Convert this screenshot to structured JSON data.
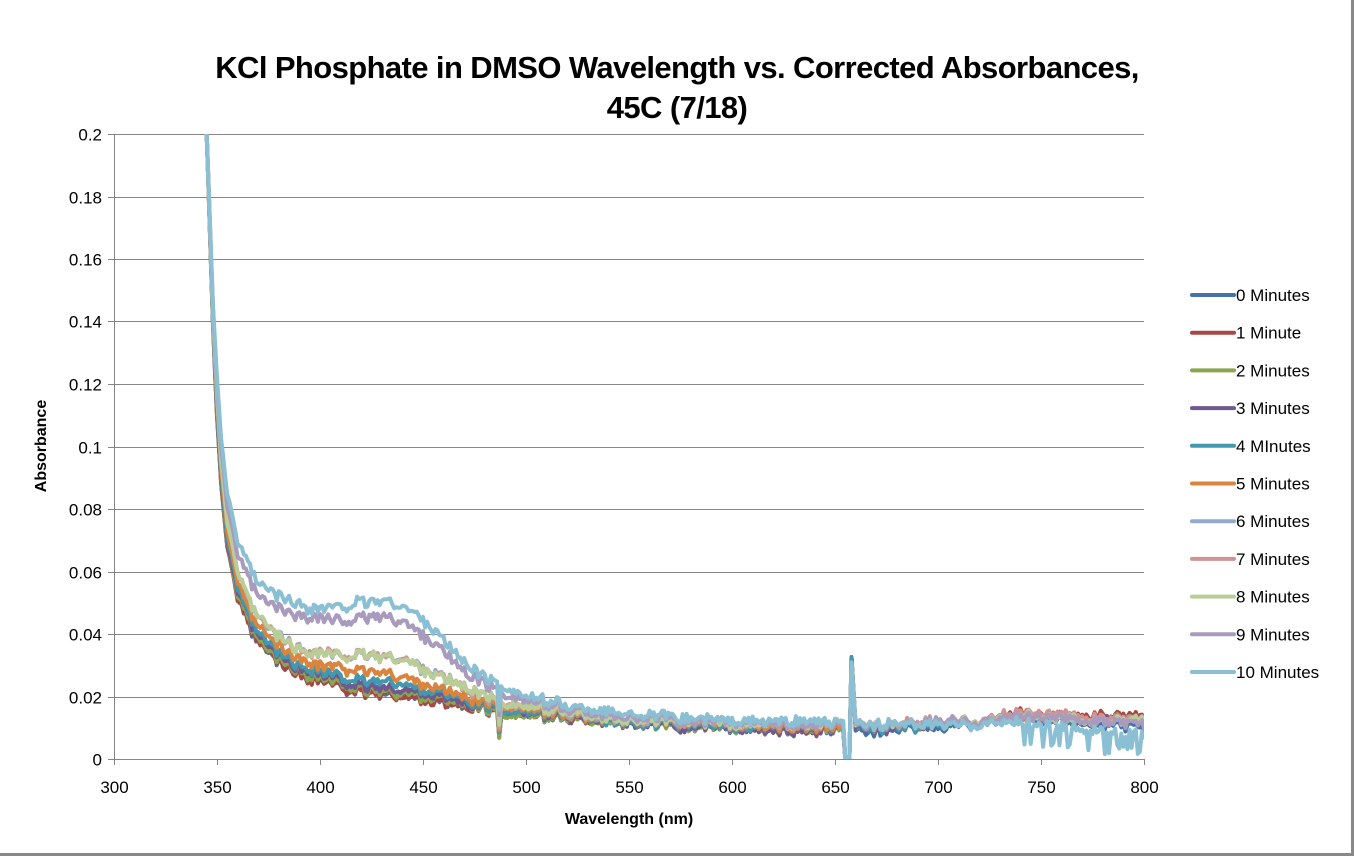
{
  "chart_data": {
    "type": "line",
    "title": "KCl Phosphate in DMSO Wavelength vs. Corrected Absorbances,",
    "title_line2": "45C (7/18)",
    "xlabel": "Wavelength (nm)",
    "ylabel": "Absorbance",
    "xlim": [
      300,
      800
    ],
    "ylim": [
      0,
      0.2
    ],
    "xticks": [
      300,
      350,
      400,
      450,
      500,
      550,
      600,
      650,
      700,
      750,
      800
    ],
    "yticks": [
      0,
      0.02,
      0.04,
      0.06,
      0.08,
      0.1,
      0.12,
      0.14,
      0.16,
      0.18,
      0.2
    ],
    "ytick_labels": [
      "0",
      "0.02",
      "0.04",
      "0.06",
      "0.08",
      "0.1",
      "0.12",
      "0.14",
      "0.16",
      "0.18",
      "0.2"
    ],
    "grid": "horizontal",
    "legend_position": "right",
    "x": [
      345,
      348,
      350,
      352,
      355,
      360,
      365,
      370,
      380,
      390,
      400,
      410,
      420,
      430,
      440,
      450,
      460,
      470,
      480,
      490,
      500,
      520,
      540,
      560,
      580,
      600,
      620,
      640,
      655,
      658,
      660,
      680,
      700,
      720,
      740,
      760,
      780,
      800
    ],
    "series": [
      {
        "name": "0 Minutes",
        "color": "#4572A7",
        "values": [
          0.2,
          0.14,
          0.11,
          0.088,
          0.068,
          0.052,
          0.043,
          0.037,
          0.031,
          0.027,
          0.025,
          0.023,
          0.021,
          0.021,
          0.02,
          0.019,
          0.018,
          0.017,
          0.016,
          0.015,
          0.014,
          0.013,
          0.012,
          0.011,
          0.01,
          0.01,
          0.009,
          0.009,
          0.009,
          0.031,
          0.009,
          0.009,
          0.01,
          0.011,
          0.013,
          0.012,
          0.011,
          0.01
        ]
      },
      {
        "name": "1 Minute",
        "color": "#AA4643",
        "values": [
          0.2,
          0.14,
          0.11,
          0.088,
          0.068,
          0.052,
          0.043,
          0.037,
          0.031,
          0.027,
          0.025,
          0.023,
          0.021,
          0.021,
          0.02,
          0.019,
          0.018,
          0.017,
          0.016,
          0.015,
          0.014,
          0.013,
          0.012,
          0.011,
          0.01,
          0.01,
          0.009,
          0.009,
          0.009,
          0.031,
          0.01,
          0.01,
          0.011,
          0.012,
          0.015,
          0.014,
          0.014,
          0.013
        ]
      },
      {
        "name": "2 Minutes",
        "color": "#89A54E",
        "values": [
          0.2,
          0.14,
          0.111,
          0.089,
          0.069,
          0.053,
          0.044,
          0.038,
          0.032,
          0.028,
          0.026,
          0.024,
          0.022,
          0.022,
          0.021,
          0.02,
          0.019,
          0.018,
          0.016,
          0.015,
          0.014,
          0.013,
          0.012,
          0.011,
          0.01,
          0.01,
          0.009,
          0.009,
          0.009,
          0.031,
          0.01,
          0.01,
          0.011,
          0.012,
          0.014,
          0.013,
          0.013,
          0.012
        ]
      },
      {
        "name": "3 Minutes",
        "color": "#71588F",
        "values": [
          0.2,
          0.141,
          0.112,
          0.09,
          0.07,
          0.054,
          0.045,
          0.039,
          0.033,
          0.029,
          0.027,
          0.025,
          0.023,
          0.023,
          0.022,
          0.021,
          0.02,
          0.018,
          0.017,
          0.016,
          0.015,
          0.013,
          0.012,
          0.011,
          0.01,
          0.01,
          0.009,
          0.009,
          0.009,
          0.031,
          0.01,
          0.01,
          0.011,
          0.012,
          0.014,
          0.013,
          0.013,
          0.012
        ]
      },
      {
        "name": "4 MInutes",
        "color": "#4198AF",
        "values": [
          0.2,
          0.141,
          0.113,
          0.091,
          0.071,
          0.055,
          0.046,
          0.04,
          0.034,
          0.03,
          0.028,
          0.026,
          0.025,
          0.025,
          0.024,
          0.022,
          0.021,
          0.019,
          0.017,
          0.016,
          0.015,
          0.014,
          0.012,
          0.011,
          0.011,
          0.01,
          0.01,
          0.01,
          0.01,
          0.031,
          0.01,
          0.01,
          0.011,
          0.012,
          0.014,
          0.013,
          0.013,
          0.012
        ]
      },
      {
        "name": "5 Minutes",
        "color": "#DB843D",
        "values": [
          0.2,
          0.142,
          0.115,
          0.093,
          0.073,
          0.057,
          0.048,
          0.042,
          0.036,
          0.032,
          0.03,
          0.029,
          0.028,
          0.028,
          0.026,
          0.024,
          0.022,
          0.02,
          0.018,
          0.017,
          0.016,
          0.014,
          0.013,
          0.012,
          0.011,
          0.011,
          0.01,
          0.01,
          0.01,
          0.03,
          0.011,
          0.011,
          0.012,
          0.012,
          0.014,
          0.013,
          0.012,
          0.012
        ]
      },
      {
        "name": "6 Minutes",
        "color": "#93A9CF",
        "values": [
          0.2,
          0.143,
          0.117,
          0.096,
          0.076,
          0.06,
          0.051,
          0.045,
          0.039,
          0.035,
          0.034,
          0.033,
          0.033,
          0.033,
          0.032,
          0.029,
          0.026,
          0.023,
          0.02,
          0.018,
          0.017,
          0.015,
          0.013,
          0.012,
          0.012,
          0.011,
          0.011,
          0.011,
          0.011,
          0.029,
          0.011,
          0.011,
          0.012,
          0.012,
          0.014,
          0.013,
          0.012,
          0.012
        ]
      },
      {
        "name": "7 Minutes",
        "color": "#D19392",
        "values": [
          0.2,
          0.143,
          0.117,
          0.096,
          0.076,
          0.06,
          0.051,
          0.045,
          0.039,
          0.035,
          0.034,
          0.033,
          0.033,
          0.033,
          0.032,
          0.029,
          0.026,
          0.023,
          0.02,
          0.018,
          0.017,
          0.015,
          0.013,
          0.012,
          0.012,
          0.011,
          0.011,
          0.011,
          0.011,
          0.029,
          0.011,
          0.011,
          0.012,
          0.012,
          0.015,
          0.014,
          0.013,
          0.012
        ]
      },
      {
        "name": "8 Minutes",
        "color": "#B9CD96",
        "values": [
          0.2,
          0.143,
          0.117,
          0.096,
          0.076,
          0.06,
          0.051,
          0.045,
          0.039,
          0.035,
          0.034,
          0.033,
          0.033,
          0.033,
          0.032,
          0.029,
          0.026,
          0.023,
          0.02,
          0.018,
          0.017,
          0.015,
          0.013,
          0.012,
          0.012,
          0.011,
          0.011,
          0.011,
          0.011,
          0.029,
          0.011,
          0.011,
          0.012,
          0.012,
          0.014,
          0.013,
          0.012,
          0.012
        ]
      },
      {
        "name": "9 Minutes",
        "color": "#A99BBD",
        "values": [
          0.2,
          0.145,
          0.12,
          0.1,
          0.081,
          0.066,
          0.058,
          0.052,
          0.048,
          0.046,
          0.045,
          0.044,
          0.045,
          0.046,
          0.044,
          0.04,
          0.034,
          0.028,
          0.024,
          0.021,
          0.019,
          0.016,
          0.014,
          0.013,
          0.012,
          0.012,
          0.011,
          0.011,
          0.011,
          0.03,
          0.011,
          0.011,
          0.012,
          0.012,
          0.014,
          0.013,
          0.012,
          0.011
        ]
      },
      {
        "name": "10 Minutes",
        "color": "#8BBFD3",
        "values": [
          0.2,
          0.146,
          0.122,
          0.103,
          0.085,
          0.07,
          0.062,
          0.056,
          0.052,
          0.049,
          0.048,
          0.049,
          0.05,
          0.051,
          0.049,
          0.045,
          0.038,
          0.031,
          0.026,
          0.023,
          0.02,
          0.017,
          0.015,
          0.014,
          0.013,
          0.012,
          0.012,
          0.012,
          0.011,
          0.03,
          0.011,
          0.011,
          0.011,
          0.011,
          0.012,
          0.01,
          0.009,
          0.008
        ]
      }
    ]
  }
}
